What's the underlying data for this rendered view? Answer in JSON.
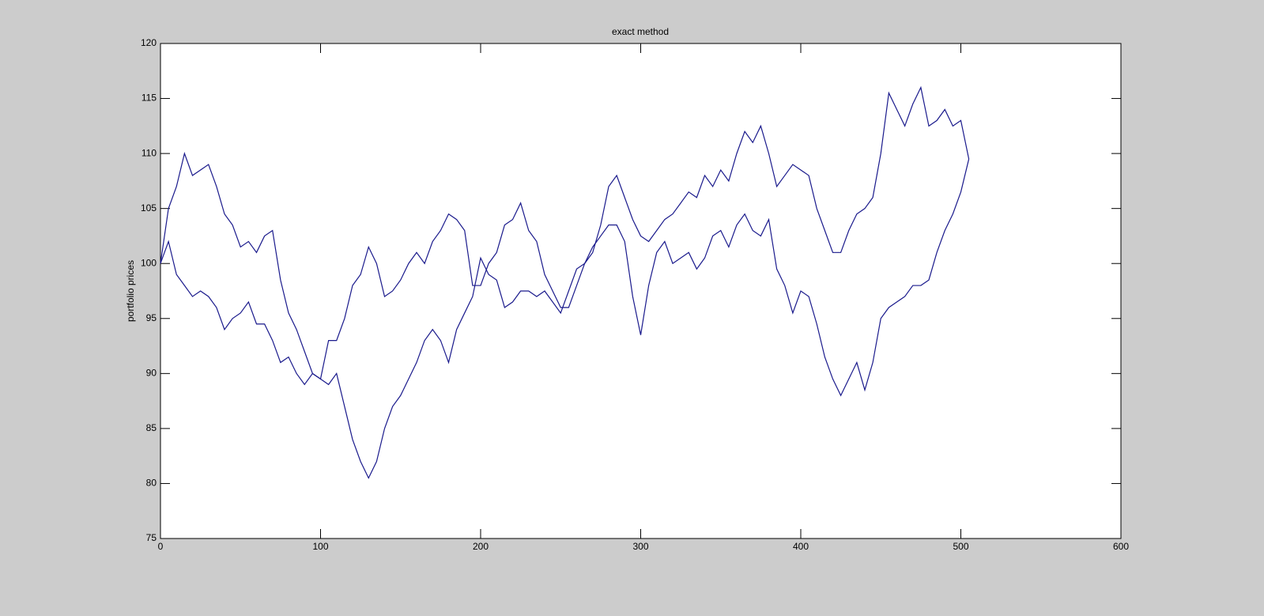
{
  "chart_data": {
    "type": "line",
    "title": "exact method",
    "ylabel": "portfolio prices",
    "x": [
      0,
      5,
      10,
      15,
      20,
      25,
      30,
      35,
      40,
      45,
      50,
      55,
      60,
      65,
      70,
      75,
      80,
      85,
      90,
      95,
      100,
      105,
      110,
      115,
      120,
      125,
      130,
      135,
      140,
      145,
      150,
      155,
      160,
      165,
      170,
      175,
      180,
      185,
      190,
      195,
      200,
      205,
      210,
      215,
      220,
      225,
      230,
      235,
      240,
      245,
      250,
      255,
      260,
      265,
      270,
      275,
      280,
      285,
      290,
      295,
      300,
      305,
      310,
      315,
      320,
      325,
      330,
      335,
      340,
      345,
      350,
      355,
      360,
      365,
      370,
      375,
      380,
      385,
      390,
      395,
      400,
      405,
      410,
      415,
      420,
      425,
      430,
      435,
      440,
      445,
      450,
      455,
      460,
      465,
      470,
      475,
      480,
      485,
      490,
      495,
      500,
      505
    ],
    "series": [
      {
        "color": "#1a1a8c",
        "values": [
          100,
          105,
          107,
          110,
          108,
          108.5,
          109,
          107,
          104.5,
          103.5,
          101.5,
          102,
          101,
          102.5,
          103,
          98.5,
          95.5,
          94,
          92,
          90,
          89.5,
          93,
          93,
          95,
          98,
          99,
          101.5,
          100,
          97,
          97.5,
          98.5,
          100,
          101,
          100,
          102,
          103,
          104.5,
          104,
          103,
          98,
          98,
          100,
          101,
          103.5,
          104,
          105.5,
          103,
          102,
          99,
          97.5,
          96,
          96,
          98,
          100,
          101,
          103.5,
          107,
          108,
          106,
          104,
          102.5,
          102,
          103,
          104,
          104.5,
          105.5,
          106.5,
          106,
          108,
          107,
          108.5,
          107.5,
          110,
          112,
          111,
          112.5,
          110,
          107,
          108,
          109,
          108.5,
          108,
          105,
          103,
          101,
          101,
          103,
          104.5,
          105,
          106,
          110,
          115.5,
          114,
          112.5,
          114.5,
          116,
          112.5,
          113,
          114,
          112.5,
          113,
          109.5
        ]
      },
      {
        "color": "#1a1a8c",
        "values": [
          100,
          102,
          99,
          98,
          97,
          97.5,
          97,
          96,
          94,
          95,
          95.5,
          96.5,
          94.5,
          94.5,
          93,
          91,
          91.5,
          90,
          89,
          90,
          89.5,
          89,
          90,
          87,
          84,
          82,
          80.5,
          82,
          85,
          87,
          88,
          89.5,
          91,
          93,
          94,
          93,
          91,
          94,
          95.5,
          97,
          100.5,
          99,
          98.5,
          96,
          96.5,
          97.5,
          97.5,
          97,
          97.5,
          96.5,
          95.5,
          97.5,
          99.5,
          100,
          101.5,
          102.5,
          103.5,
          103.5,
          102,
          97,
          93.5,
          98,
          101,
          102,
          100,
          100.5,
          101,
          99.5,
          100.5,
          102.5,
          103,
          101.5,
          103.5,
          104.5,
          103,
          102.5,
          104,
          99.5,
          98,
          95.5,
          97.5,
          97,
          94.5,
          91.5,
          89.5,
          88,
          89.5,
          91,
          88.5,
          91,
          95,
          96,
          96.5,
          97,
          98,
          98,
          98.5,
          101,
          103,
          104.5,
          106.5,
          109.5
        ]
      }
    ],
    "xlim": [
      0,
      600
    ],
    "xticks": [
      0,
      100,
      200,
      300,
      400,
      500,
      600
    ],
    "ylim": [
      75,
      120
    ],
    "yticks": [
      75,
      80,
      85,
      90,
      95,
      100,
      105,
      110,
      115,
      120
    ]
  }
}
